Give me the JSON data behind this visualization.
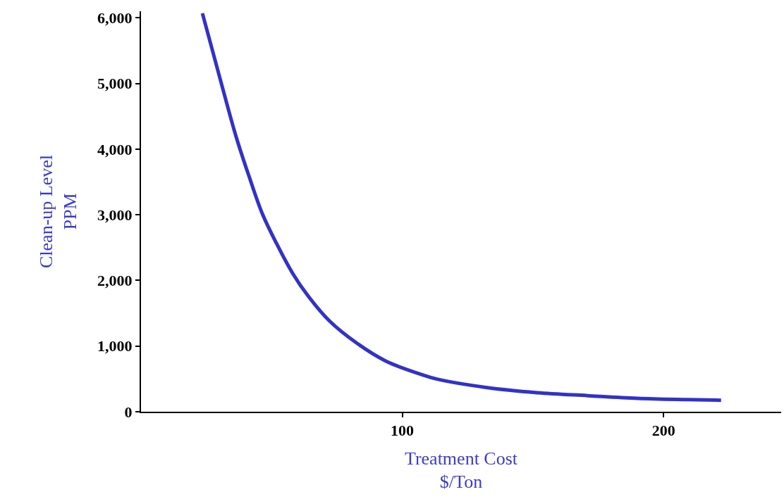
{
  "chart_data": {
    "type": "line",
    "xlabel": "Treatment Cost\n$/Ton",
    "ylabel": "Clean-up Level\nPPM",
    "x": [
      23.5,
      31.3,
      36.4,
      41.4,
      46.5,
      51.9,
      58,
      64.2,
      72.2,
      82.4,
      93.8,
      107.5,
      113,
      132,
      151.6,
      171,
      190,
      209,
      222
    ],
    "series": [
      {
        "color": "#3232c8",
        "values": [
          6070,
          4920,
          4190,
          3580,
          3010,
          2560,
          2110,
          1750,
          1380,
          1050,
          770,
          565,
          500,
          370,
          290,
          245,
          205,
          185,
          175
        ]
      }
    ],
    "xlim": [
      0,
      245
    ],
    "xticks": [
      100,
      200
    ],
    "ylim": [
      0,
      6100
    ],
    "yticks": [
      0,
      {
        "value": 1000,
        "label": "1,000"
      },
      {
        "value": 2000,
        "label": "2,000"
      },
      {
        "value": 3000,
        "label": "3,000"
      },
      {
        "value": 4000,
        "label": "4,000"
      },
      {
        "value": 5000,
        "label": "5,000"
      },
      {
        "value": 6000,
        "label": "6,000"
      }
    ],
    "marker": "none",
    "line_style": "solid"
  }
}
